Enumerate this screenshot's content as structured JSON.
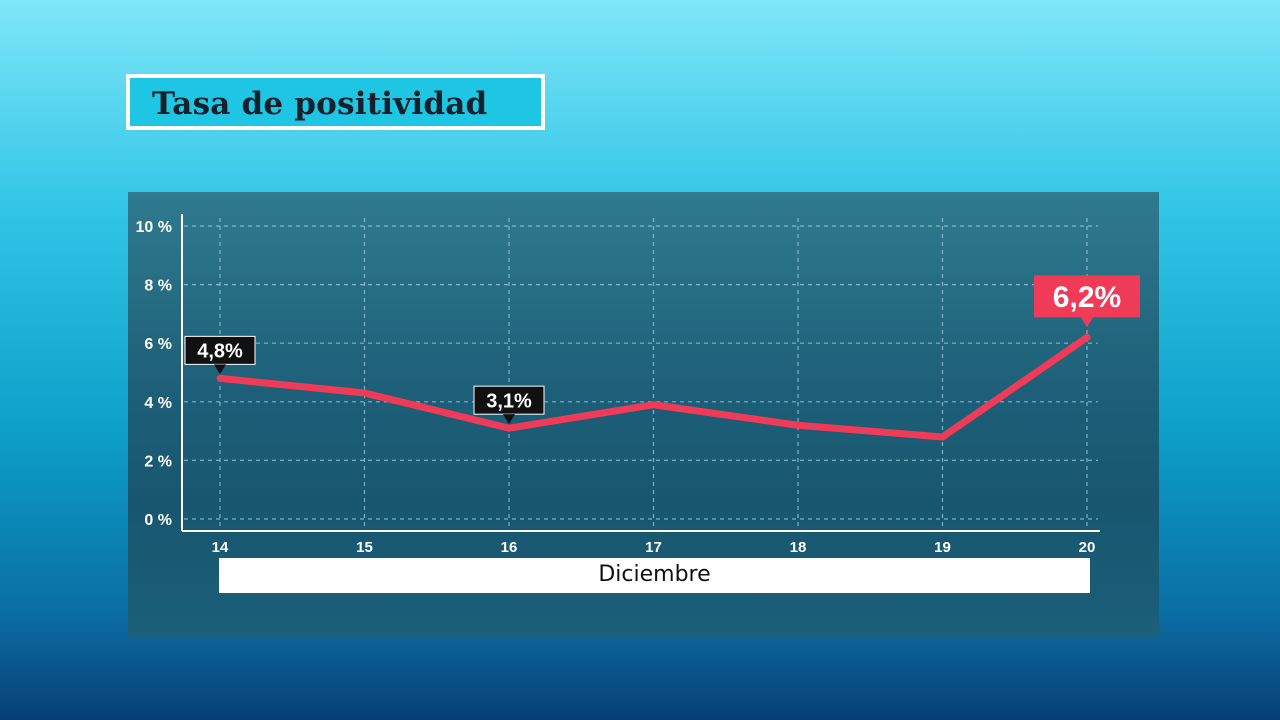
{
  "title": "Tasa de positividad",
  "colors": {
    "line": "#f03b58",
    "callout_dark": "#111111",
    "callout_accent": "#f03b58",
    "grid": "#9fd0dc"
  },
  "chart_data": {
    "type": "line",
    "title": "Tasa de positividad",
    "xlabel": "Diciembre",
    "ylabel": "",
    "x": [
      "14",
      "15",
      "16",
      "17",
      "18",
      "19",
      "20"
    ],
    "y": [
      4.8,
      4.3,
      3.1,
      3.9,
      3.2,
      2.8,
      6.2
    ],
    "y_ticks": [
      "0 %",
      "2 %",
      "4 %",
      "6 %",
      "8 %",
      "10 %"
    ],
    "ylim": [
      0,
      10
    ],
    "grid": true,
    "annotations": [
      {
        "index": 0,
        "label": "4,8%",
        "style": "dark"
      },
      {
        "index": 2,
        "label": "3,1%",
        "style": "dark"
      },
      {
        "index": 6,
        "label": "6,2%",
        "style": "accent"
      }
    ]
  }
}
